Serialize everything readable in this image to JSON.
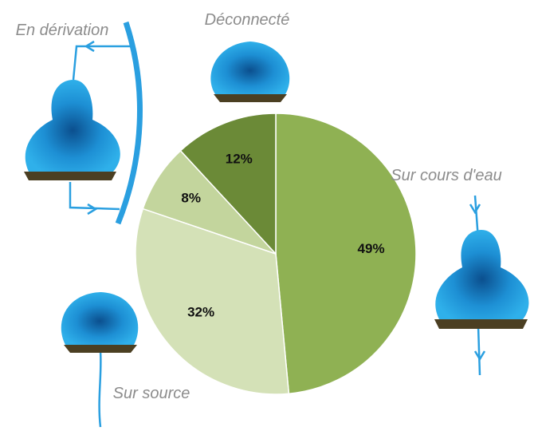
{
  "chart_data": {
    "type": "pie",
    "categories": [
      "Sur cours d'eau",
      "Sur source",
      "En dérivation",
      "Déconnecté"
    ],
    "values": [
      49,
      32,
      8,
      12
    ],
    "value_labels": [
      "49%",
      "32%",
      "8%",
      "12%"
    ],
    "colors": [
      "#8fb153",
      "#d4e1b7",
      "#c3d59d",
      "#6b8a37"
    ]
  }
}
